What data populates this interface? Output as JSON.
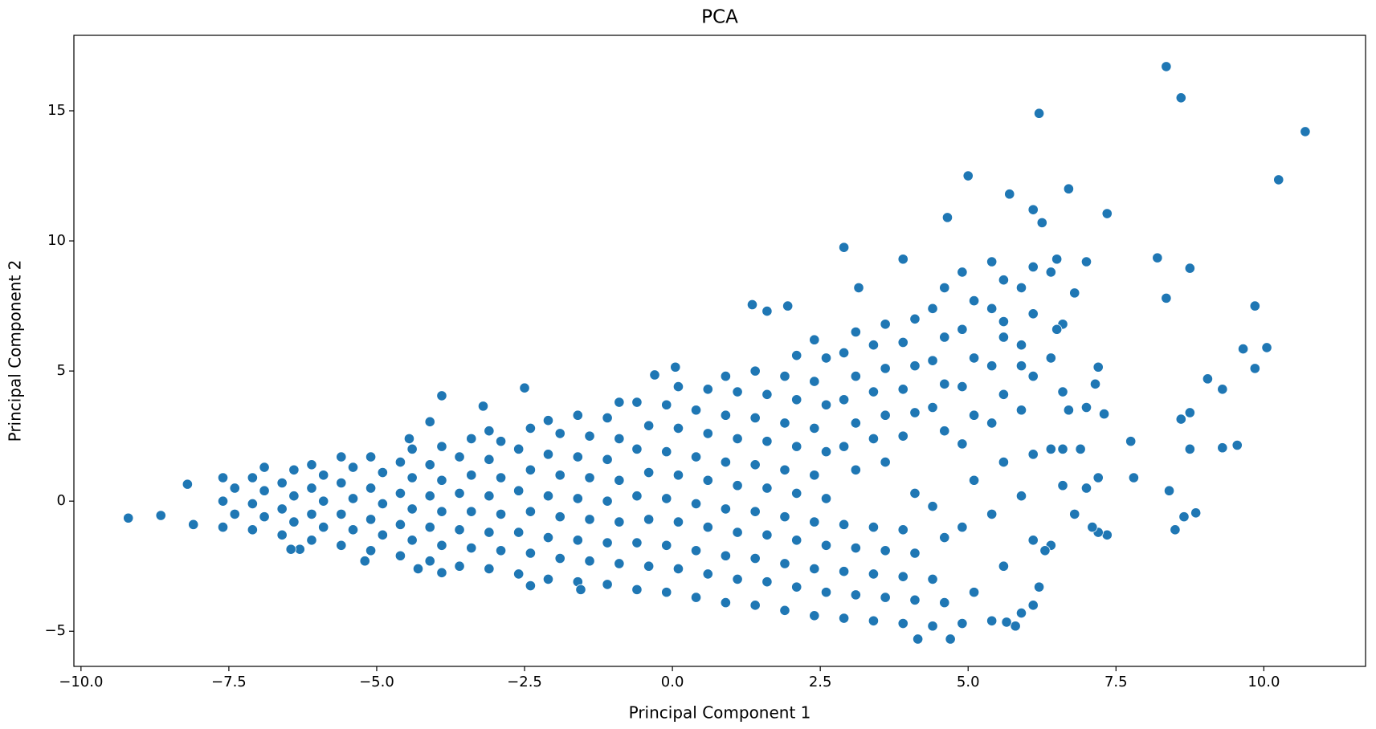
{
  "chart_data": {
    "type": "scatter",
    "title": "PCA",
    "x_label": "Principal Component 1",
    "y_label": "Principal Component 2",
    "color": "#1f77b4",
    "xlim": [
      -10.12,
      11.72
    ],
    "ylim": [
      -6.35,
      17.9
    ],
    "xticks": [
      {
        "value": -10,
        "label": "−10.0"
      },
      {
        "value": -7.5,
        "label": "−7.5"
      },
      {
        "value": -5,
        "label": "−5.0"
      },
      {
        "value": -2.5,
        "label": "−2.5"
      },
      {
        "value": 0,
        "label": "0.0"
      },
      {
        "value": 2.5,
        "label": "2.5"
      },
      {
        "value": 5,
        "label": "5.0"
      },
      {
        "value": 7.5,
        "label": "7.5"
      },
      {
        "value": 10,
        "label": "10.0"
      }
    ],
    "yticks": [
      {
        "value": -5,
        "label": "−5"
      },
      0,
      5,
      10,
      15
    ],
    "x": [
      -7.6,
      -7.4,
      -7.6,
      -7.4,
      -7.6,
      -7.1,
      -6.9,
      -7.1,
      -6.9,
      -7.1,
      -6.9,
      -6.6,
      -6.4,
      -6.6,
      -6.4,
      -6.6,
      -6.4,
      -6.1,
      -5.9,
      -6.1,
      -5.9,
      -6.1,
      -5.9,
      -6.1,
      -5.6,
      -5.4,
      -5.6,
      -5.4,
      -5.6,
      -5.4,
      -5.6,
      -5.1,
      -4.9,
      -5.1,
      -4.9,
      -5.1,
      -4.9,
      -5.1,
      -4.6,
      -4.4,
      -4.6,
      -4.4,
      -4.6,
      -4.4,
      -4.6,
      -4.4,
      -4.1,
      -3.9,
      -4.1,
      -3.9,
      -4.1,
      -3.9,
      -4.1,
      -3.9,
      -3.6,
      -3.4,
      -3.6,
      -3.4,
      -3.6,
      -3.4,
      -3.6,
      -3.4,
      -3.1,
      -2.9,
      -3.1,
      -2.9,
      -3.1,
      -2.9,
      -3.1,
      -2.9,
      -3.1,
      -2.6,
      -2.4,
      -2.6,
      -2.4,
      -2.6,
      -2.4,
      -2.6,
      -2.4,
      -2.1,
      -1.9,
      -2.1,
      -1.9,
      -2.1,
      -1.9,
      -2.1,
      -1.9,
      -2.1,
      -1.6,
      -1.4,
      -1.6,
      -1.4,
      -1.6,
      -1.4,
      -1.6,
      -1.4,
      -1.6,
      -1.1,
      -0.9,
      -1.1,
      -0.9,
      -1.1,
      -0.9,
      -1.1,
      -0.9,
      -1.1,
      -0.9,
      -0.6,
      -0.4,
      -0.6,
      -0.4,
      -0.6,
      -0.4,
      -0.6,
      -0.4,
      -0.6,
      -0.1,
      0.1,
      -0.1,
      0.1,
      -0.1,
      0.1,
      -0.1,
      0.1,
      -0.1,
      0.1,
      0.4,
      0.6,
      0.4,
      0.6,
      0.4,
      0.6,
      0.4,
      0.6,
      0.4,
      0.6,
      0.9,
      1.1,
      0.9,
      1.1,
      0.9,
      1.1,
      0.9,
      1.1,
      0.9,
      1.1,
      0.9,
      1.4,
      1.6,
      1.4,
      1.6,
      1.4,
      1.6,
      1.4,
      1.6,
      1.4,
      1.6,
      1.4,
      1.9,
      2.1,
      1.9,
      2.1,
      1.9,
      2.1,
      1.9,
      2.1,
      1.9,
      2.1,
      1.9,
      2.1,
      2.4,
      2.6,
      2.4,
      2.6,
      2.4,
      2.6,
      2.4,
      2.6,
      2.4,
      2.6,
      2.4,
      2.6,
      2.4,
      2.9,
      3.1,
      2.9,
      3.1,
      2.9,
      3.1,
      2.9,
      3.1,
      2.9,
      3.1,
      2.9,
      3.1,
      3.4,
      3.6,
      3.4,
      3.6,
      3.4,
      3.6,
      3.4,
      3.6,
      3.4,
      3.6,
      3.4,
      3.6,
      3.9,
      4.1,
      3.9,
      4.1,
      3.9,
      4.1,
      3.9,
      4.1,
      3.9,
      4.1,
      3.9,
      4.1,
      4.4,
      4.6,
      4.4,
      4.6,
      4.4,
      4.6,
      4.4,
      4.6,
      4.4,
      4.6,
      4.4,
      4.6,
      4.9,
      5.1,
      4.9,
      5.1,
      4.9,
      5.1,
      4.9,
      5.1,
      4.9,
      5.1,
      4.9,
      5.4,
      5.6,
      5.4,
      5.6,
      5.4,
      5.6,
      5.4,
      5.6,
      5.4,
      5.6,
      5.4,
      5.9,
      6.1,
      5.9,
      6.1,
      5.9,
      6.1,
      5.9,
      6.1,
      5.9,
      6.1,
      6.4,
      6.6,
      6.4,
      6.6,
      6.4,
      6.6,
      -9.2,
      -8.65,
      -8.2,
      -8.1,
      8.35,
      8.6,
      10.7,
      6.2,
      10.25,
      5.0,
      6.7,
      5.7,
      7.35,
      4.65,
      6.1,
      6.25,
      2.9,
      3.9,
      8.2,
      8.75,
      8.35,
      9.85,
      1.35,
      1.6,
      1.95,
      3.15,
      9.65,
      10.05,
      9.85,
      9.05,
      9.3,
      9.55,
      9.3,
      8.75,
      8.6,
      8.75,
      8.5,
      8.65,
      8.85,
      8.4,
      7.75,
      7.8,
      7.35,
      7.3,
      -3.9,
      -2.5,
      -3.2,
      -0.3,
      0.05,
      -4.1,
      -4.45,
      -6.3,
      -6.45,
      -5.2,
      -4.3,
      -3.9,
      -2.4,
      -1.55,
      4.15,
      4.7,
      5.8,
      5.65,
      6.1,
      6.2,
      6.3,
      7.2,
      7.1,
      6.8,
      7.0,
      7.2,
      6.6,
      6.9,
      7.2,
      7.0,
      6.5,
      6.4,
      6.8,
      7.15,
      7.0,
      6.7,
      5.6,
      5.9,
      6.5
    ],
    "values": [
      -1.0,
      -0.5,
      0,
      0.5,
      0.9,
      -1.1,
      -0.6,
      -0.1,
      0.4,
      0.9,
      1.3,
      -1.3,
      -0.8,
      -0.3,
      0.2,
      0.7,
      1.2,
      -1.5,
      -1.0,
      -0.5,
      0,
      0.5,
      1.0,
      1.4,
      -1.7,
      -1.1,
      -0.5,
      0.1,
      0.7,
      1.3,
      1.7,
      -1.9,
      -1.3,
      -0.7,
      -0.1,
      0.5,
      1.1,
      1.7,
      -2.1,
      -1.5,
      -0.9,
      -0.3,
      0.3,
      0.9,
      1.5,
      2.0,
      -2.3,
      -1.7,
      -1.0,
      -0.4,
      0.2,
      0.8,
      1.4,
      2.1,
      -2.5,
      -1.8,
      -1.1,
      -0.4,
      0.3,
      1.0,
      1.7,
      2.4,
      -2.6,
      -1.9,
      -1.2,
      -0.5,
      0.2,
      0.9,
      1.6,
      2.3,
      2.7,
      -2.8,
      -2.0,
      -1.2,
      -0.4,
      0.4,
      1.2,
      2.0,
      2.8,
      -3.0,
      -2.2,
      -1.4,
      -0.6,
      0.2,
      1.0,
      1.8,
      2.6,
      3.1,
      -3.1,
      -2.3,
      -1.5,
      -0.7,
      0.1,
      0.9,
      1.7,
      2.5,
      3.3,
      -3.2,
      -2.4,
      -1.6,
      -0.8,
      0,
      0.8,
      1.6,
      2.4,
      3.2,
      3.8,
      -3.4,
      -2.5,
      -1.6,
      -0.7,
      0.2,
      1.1,
      2.0,
      2.9,
      3.8,
      -3.5,
      -2.6,
      -1.7,
      -0.8,
      0.1,
      1.0,
      1.9,
      2.8,
      3.7,
      4.4,
      -3.7,
      -2.8,
      -1.9,
      -1.0,
      -0.1,
      0.8,
      1.7,
      2.6,
      3.5,
      4.3,
      -3.9,
      -3.0,
      -2.1,
      -1.2,
      -0.3,
      0.6,
      1.5,
      2.4,
      3.3,
      4.2,
      4.8,
      -4.0,
      -3.1,
      -2.2,
      -1.3,
      -0.4,
      0.5,
      1.4,
      2.3,
      3.2,
      4.1,
      5.0,
      -4.2,
      -3.3,
      -2.4,
      -1.5,
      -0.6,
      0.3,
      1.2,
      2.1,
      3.0,
      3.9,
      4.8,
      5.6,
      -4.4,
      -3.5,
      -2.6,
      -1.7,
      -0.8,
      0.1,
      1.0,
      1.9,
      2.8,
      3.7,
      4.6,
      5.5,
      6.2,
      -4.5,
      -3.6,
      -2.7,
      -1.8,
      -0.9,
      1.2,
      2.1,
      3.0,
      3.9,
      4.8,
      5.7,
      6.5,
      -4.6,
      -3.7,
      -2.8,
      -1.9,
      -1.0,
      1.5,
      2.4,
      3.3,
      4.2,
      5.1,
      6.0,
      6.8,
      -4.7,
      -3.8,
      -2.9,
      -2.0,
      -1.1,
      0.3,
      2.5,
      3.4,
      4.3,
      5.2,
      6.1,
      7.0,
      -4.8,
      -3.9,
      -3.0,
      -1.4,
      -0.2,
      2.7,
      3.6,
      4.5,
      5.4,
      6.3,
      7.4,
      8.2,
      -4.7,
      -3.5,
      -1.0,
      0.8,
      2.2,
      3.3,
      4.4,
      5.5,
      6.6,
      7.7,
      8.8,
      -4.6,
      -2.5,
      -0.5,
      1.5,
      3.0,
      4.1,
      5.2,
      6.3,
      7.4,
      8.5,
      9.2,
      -4.3,
      -1.5,
      0.2,
      1.8,
      3.5,
      4.8,
      6.0,
      7.2,
      8.2,
      9.0,
      -1.7,
      0.6,
      2.0,
      4.2,
      5.5,
      6.8,
      -0.65,
      -0.55,
      0.65,
      -0.9,
      16.7,
      15.5,
      14.2,
      14.9,
      12.35,
      12.5,
      12.0,
      11.8,
      11.05,
      10.9,
      11.2,
      10.7,
      9.75,
      9.3,
      9.35,
      8.95,
      7.8,
      7.5,
      7.55,
      7.3,
      7.5,
      8.2,
      5.85,
      5.9,
      5.1,
      4.7,
      4.3,
      2.15,
      2.05,
      2.0,
      3.15,
      3.4,
      -1.1,
      -0.6,
      -0.45,
      0.4,
      2.3,
      0.9,
      -1.3,
      3.35,
      4.05,
      4.35,
      3.65,
      4.85,
      5.15,
      3.05,
      2.4,
      -1.85,
      -1.85,
      -2.3,
      -2.6,
      -2.75,
      -3.25,
      -3.4,
      -5.3,
      -5.3,
      -4.8,
      -4.65,
      -4.0,
      -3.3,
      -1.9,
      -1.2,
      -1.0,
      -0.5,
      0.5,
      0.9,
      2.0,
      2.0,
      5.15,
      9.2,
      9.3,
      8.8,
      8.0,
      4.5,
      3.6,
      3.5,
      6.9,
      5.2,
      6.6
    ]
  }
}
